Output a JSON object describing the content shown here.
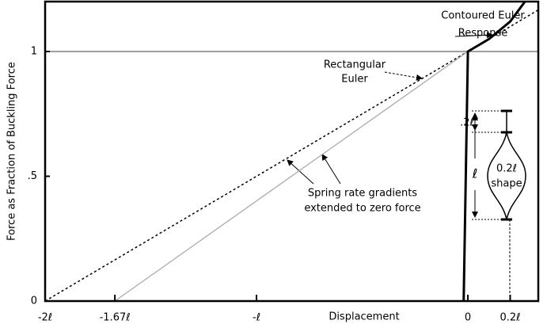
{
  "chart_data": {
    "type": "line",
    "xlabel": "Displacement",
    "ylabel": "Force as Fraction of Buckling Force",
    "xlim": [
      -2,
      0.333
    ],
    "ylim": [
      0,
      1.2
    ],
    "xticks": [
      {
        "value": -2,
        "label": "-2ℓ"
      },
      {
        "value": -1.67,
        "label": "-1.67ℓ"
      },
      {
        "value": -1,
        "label": "-ℓ"
      },
      0,
      {
        "value": 0.2,
        "label": "0.2ℓ"
      }
    ],
    "yticks": [
      0,
      {
        "value": 0.5,
        "label": ".5"
      },
      1
    ],
    "series": [
      {
        "color": "#000000",
        "style": "dotted",
        "x": [
          -2,
          0.333
        ],
        "values": [
          0,
          1.1665
        ]
      },
      {
        "color": "#aaaaaa",
        "style": "solid",
        "x": [
          -1.67,
          0
        ],
        "values": [
          0,
          1
        ]
      },
      {
        "color": "#000000",
        "style": "thick",
        "x": [
          -0.02,
          0,
          0.1,
          0.2,
          0.27
        ],
        "values": [
          0,
          1,
          1.05,
          1.12,
          1.2
        ]
      }
    ],
    "annotations": {
      "contoured": [
        "Contoured Euler",
        "Response"
      ],
      "rectangular": [
        "Rectangular",
        "Euler"
      ],
      "spring": [
        "Spring rate gradients",
        "extended to zero force"
      ],
      "length": "ℓ",
      "segment": ".2ℓ",
      "shape": [
        "0.2ℓ",
        "shape"
      ]
    }
  }
}
